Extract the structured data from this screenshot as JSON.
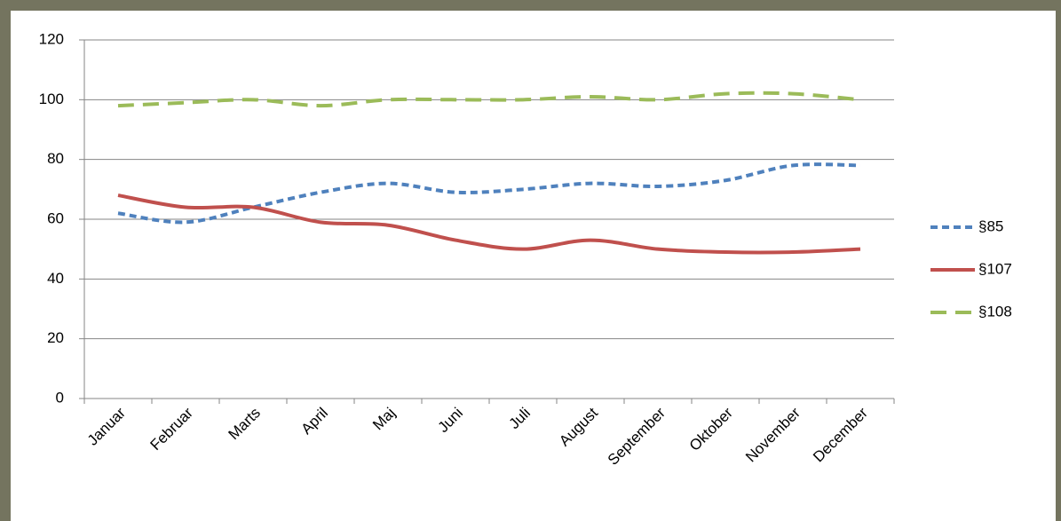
{
  "chart_data": {
    "type": "line",
    "categories": [
      "Januar",
      "Februar",
      "Marts",
      "April",
      "Maj",
      "Juni",
      "Juli",
      "August",
      "September",
      "Oktober",
      "November",
      "December"
    ],
    "series": [
      {
        "name": "§85",
        "color": "#4f81bd",
        "dash": "short",
        "values": [
          62,
          59,
          64,
          69,
          72,
          69,
          70,
          72,
          71,
          73,
          78,
          78
        ]
      },
      {
        "name": "§107",
        "color": "#c0504d",
        "dash": "solid",
        "values": [
          68,
          64,
          64,
          59,
          58,
          53,
          50,
          53,
          50,
          49,
          49,
          50
        ]
      },
      {
        "name": "§108",
        "color": "#9bbb59",
        "dash": "long",
        "values": [
          98,
          99,
          100,
          98,
          100,
          100,
          100,
          101,
          100,
          102,
          102,
          100
        ]
      }
    ],
    "ylim": [
      0,
      120
    ],
    "yticks": [
      0,
      20,
      40,
      60,
      80,
      100,
      120
    ],
    "grid": true,
    "legend": "right",
    "smooth": true
  }
}
